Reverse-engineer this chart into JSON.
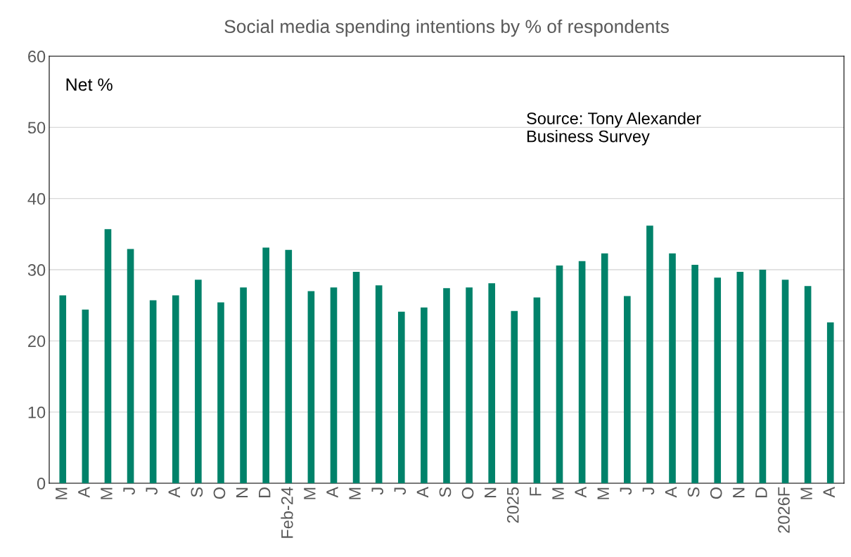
{
  "chart_data": {
    "type": "bar",
    "title": "Social media spending intentions by % of respondents",
    "categories": [
      "M",
      "A",
      "M",
      "J",
      "J",
      "A",
      "S",
      "O",
      "N",
      "D",
      "Feb-24",
      "M",
      "A",
      "M",
      "J",
      "J",
      "A",
      "S",
      "O",
      "N",
      "2025",
      "F",
      "M",
      "A",
      "M",
      "J",
      "J",
      "A",
      "S",
      "O",
      "N",
      "D",
      "2026F",
      "M",
      "A"
    ],
    "values": [
      26.4,
      24.4,
      35.7,
      32.9,
      25.7,
      26.4,
      28.6,
      25.4,
      27.5,
      33.1,
      32.8,
      27.0,
      27.5,
      29.7,
      27.8,
      24.1,
      24.7,
      27.4,
      27.5,
      28.1,
      24.2,
      26.1,
      30.6,
      31.2,
      32.3,
      26.3,
      36.2,
      32.3,
      30.7,
      28.9,
      29.7,
      30.0,
      28.6,
      27.7,
      22.6
    ],
    "color": "#00826a",
    "ylim": [
      0,
      60
    ],
    "yticks": [
      0,
      10,
      20,
      30,
      40,
      50,
      60
    ],
    "grid": "y",
    "annotations": [
      "Net %",
      "Source: Tony Alexander Business Survey"
    ]
  }
}
